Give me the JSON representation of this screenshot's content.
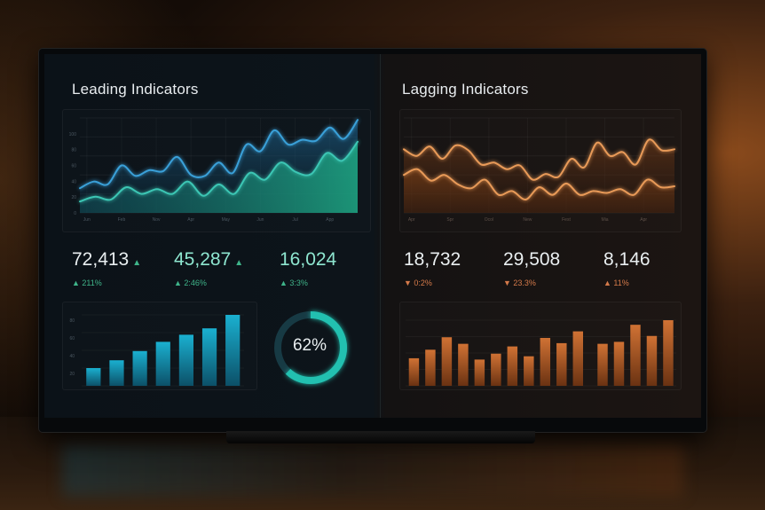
{
  "colors": {
    "leading_line_upper": "#3aa0d8",
    "leading_line_lower": "#3cc6b4",
    "lagging_line": "#e89a58",
    "leading_bar": "#1aa0c0",
    "lagging_bar": "#c4652a",
    "up": "#3fb58a",
    "down": "#d57a4a"
  },
  "leading": {
    "title": "Leading Indicators",
    "stats": [
      {
        "value": "72,413",
        "trend": "up",
        "arrow": "▲",
        "delta": "▲ 211%"
      },
      {
        "value": "45,287",
        "trend": "up",
        "arrow": "▲",
        "delta": "▲ 2:46%"
      },
      {
        "value": "16,024",
        "trend": "up",
        "arrow": "",
        "delta": "▲ 3:3%"
      }
    ],
    "gauge": {
      "label": "62%",
      "value": 62
    }
  },
  "lagging": {
    "title": "Lagging Indicators",
    "stats": [
      {
        "value": "18,732",
        "trend": "down",
        "delta": "▼ 0:2%"
      },
      {
        "value": "29,508",
        "trend": "down",
        "delta": "▼ 23.3%"
      },
      {
        "value": "8,146",
        "trend": "up",
        "delta": "▲ 11%"
      }
    ]
  },
  "chart_data": [
    {
      "type": "area",
      "grid": true,
      "x_tick_labels": [
        "Jun",
        "Feb",
        "Nov",
        "Apr",
        "May",
        "Jun",
        "Jul",
        "App"
      ],
      "y_tick_labels": [
        "0",
        "20",
        "40",
        "60",
        "80",
        "100"
      ],
      "ylim": [
        0,
        100
      ],
      "series": [
        {
          "values": [
            26,
            33,
            30,
            50,
            39,
            45,
            44,
            59,
            40,
            39,
            53,
            42,
            72,
            65,
            87,
            72,
            77,
            76,
            90,
            78,
            98
          ]
        },
        {
          "values": [
            12,
            17,
            14,
            27,
            20,
            25,
            20,
            33,
            18,
            30,
            20,
            42,
            35,
            53,
            43,
            41,
            63,
            55,
            75
          ]
        }
      ]
    },
    {
      "type": "area",
      "grid": true,
      "x_tick_labels": [
        "Apr",
        "Spr",
        "Ocol",
        "New",
        "Fest",
        "Mia",
        "Apr"
      ],
      "ylim": [
        0,
        100
      ],
      "series": [
        {
          "values": [
            67,
            60,
            70,
            57,
            71,
            66,
            51,
            53,
            46,
            50,
            35,
            41,
            38,
            57,
            48,
            74,
            60,
            64,
            51,
            77,
            66,
            67
          ]
        },
        {
          "values": [
            40,
            46,
            34,
            40,
            30,
            26,
            35,
            19,
            23,
            14,
            27,
            19,
            31,
            19,
            23,
            21,
            25,
            19,
            35,
            27,
            28
          ]
        }
      ]
    },
    {
      "type": "bar",
      "grid": true,
      "y_tick_labels": [
        "20",
        "40",
        "60",
        "80"
      ],
      "ylim": [
        0,
        100
      ],
      "values": [
        25,
        36,
        49,
        62,
        72,
        81,
        100
      ]
    },
    {
      "type": "bar",
      "ylim": [
        0,
        100
      ],
      "values": [
        42,
        55,
        74,
        64,
        40,
        49,
        60,
        45,
        73,
        65,
        83,
        64,
        67,
        93,
        76,
        100
      ]
    }
  ]
}
